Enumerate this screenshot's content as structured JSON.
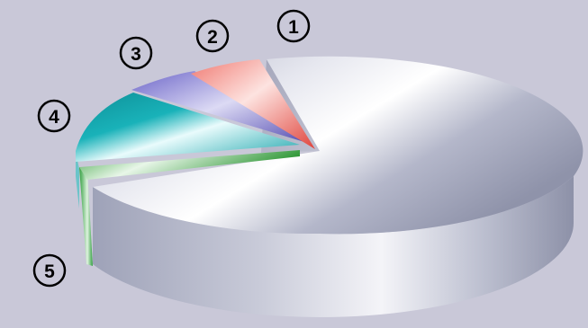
{
  "chart_data": {
    "type": "pie",
    "title": "",
    "style": "3d-exploded",
    "legend": "none",
    "slice_labels": [
      "1",
      "2",
      "3",
      "4",
      "5"
    ],
    "background_color": "#c9c8d8",
    "slices": [
      {
        "label": "1",
        "value": 72.0,
        "color": "#c7c9d9"
      },
      {
        "label": "2",
        "value": 3.0,
        "color": "#ef4f48"
      },
      {
        "label": "3",
        "value": 4.0,
        "color": "#6b64c8"
      },
      {
        "label": "4",
        "value": 10.0,
        "color": "#15a8b0"
      },
      {
        "label": "5",
        "value": 2.0,
        "color": "#2f9e3d"
      },
      {
        "label": "",
        "value": 9.0,
        "color": "#c7c9d9"
      }
    ]
  }
}
